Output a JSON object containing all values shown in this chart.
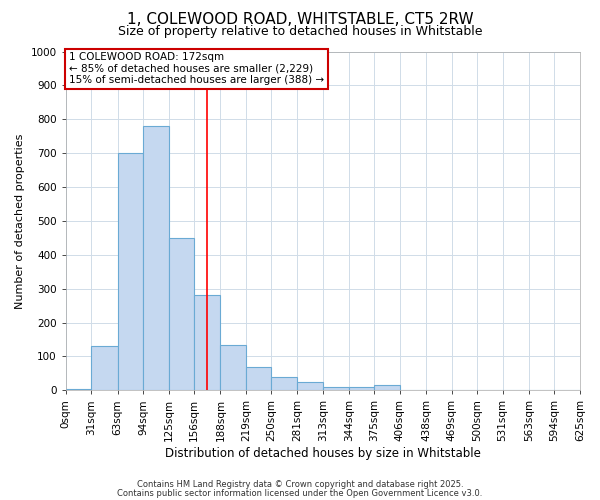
{
  "title_line1": "1, COLEWOOD ROAD, WHITSTABLE, CT5 2RW",
  "title_line2": "Size of property relative to detached houses in Whitstable",
  "xlabel": "Distribution of detached houses by size in Whitstable",
  "ylabel": "Number of detached properties",
  "bin_edges": [
    0,
    31,
    63,
    94,
    125,
    156,
    188,
    219,
    250,
    281,
    313,
    344,
    375,
    406,
    438,
    469,
    500,
    531,
    563,
    594,
    625
  ],
  "bar_heights": [
    5,
    130,
    700,
    780,
    450,
    280,
    133,
    68,
    40,
    25,
    10,
    10,
    15,
    0,
    0,
    0,
    0,
    0,
    0,
    0
  ],
  "bar_color": "#c5d8f0",
  "bar_edge_color": "#6aaad4",
  "red_line_x": 172,
  "ylim": [
    0,
    1000
  ],
  "yticks": [
    0,
    100,
    200,
    300,
    400,
    500,
    600,
    700,
    800,
    900,
    1000
  ],
  "annotation_box_text_line1": "1 COLEWOOD ROAD: 172sqm",
  "annotation_box_text_line2": "← 85% of detached houses are smaller (2,229)",
  "annotation_box_text_line3": "15% of semi-detached houses are larger (388) →",
  "footer_line1": "Contains HM Land Registry data © Crown copyright and database right 2025.",
  "footer_line2": "Contains public sector information licensed under the Open Government Licence v3.0.",
  "background_color": "#ffffff",
  "plot_background": "#ffffff",
  "grid_color": "#d0dce8",
  "annotation_box_color": "#ffffff",
  "annotation_box_edge": "#cc0000",
  "title_fontsize": 11,
  "subtitle_fontsize": 9,
  "tick_fontsize": 7.5,
  "ylabel_fontsize": 8,
  "xlabel_fontsize": 8.5
}
